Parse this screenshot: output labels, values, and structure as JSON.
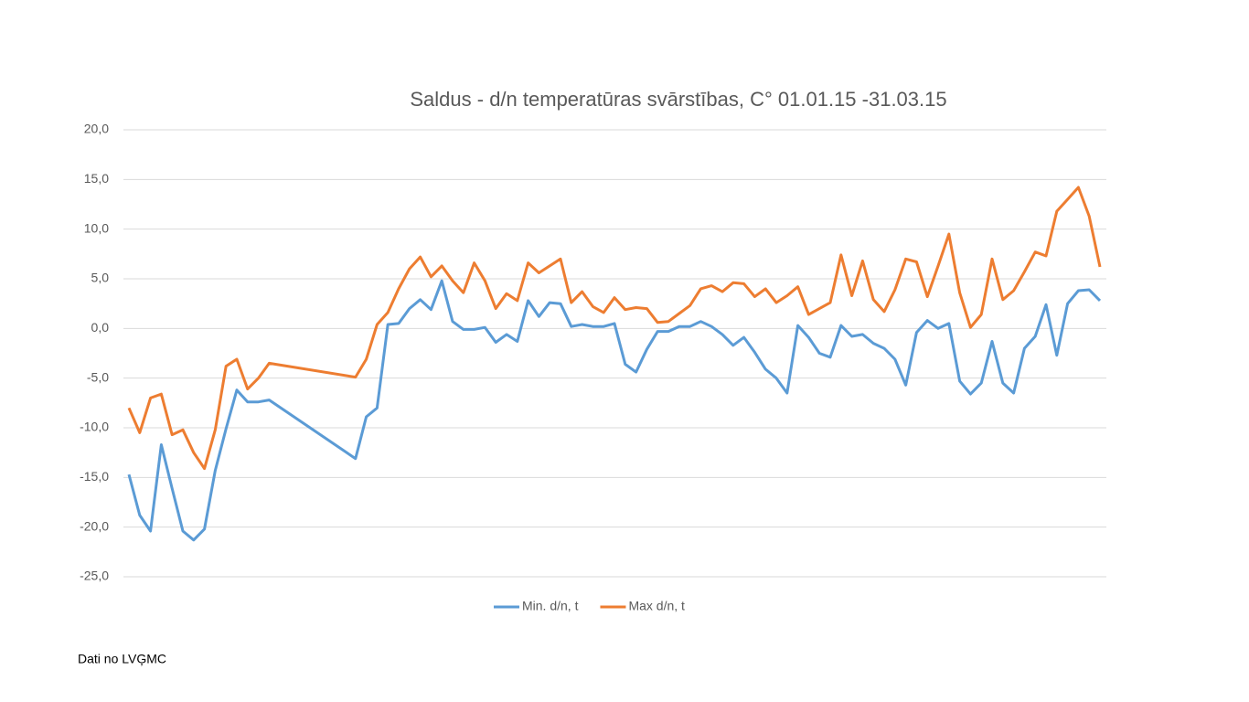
{
  "chart_data": {
    "type": "line",
    "title": "Saldus - d/n temperatūras  svārstības, C° 01.01.15 -31.03.15",
    "x": [
      1,
      2,
      3,
      4,
      5,
      6,
      7,
      8,
      9,
      10,
      11,
      12,
      13,
      14,
      22,
      23,
      24,
      25,
      26,
      27,
      28,
      29,
      30,
      31,
      32,
      33,
      34,
      35,
      36,
      37,
      38,
      39,
      40,
      41,
      42,
      43,
      44,
      45,
      46,
      47,
      48,
      49,
      50,
      51,
      52,
      53,
      54,
      55,
      56,
      57,
      58,
      59,
      60,
      61,
      62,
      63,
      64,
      65,
      66,
      67,
      68,
      69,
      70,
      71,
      72,
      73,
      74,
      75,
      76,
      77,
      78,
      79,
      80,
      81,
      82,
      83,
      84,
      85,
      86,
      87,
      88,
      89,
      90,
      91
    ],
    "xlim": [
      1,
      91
    ],
    "series": [
      {
        "name": "Min. d/n, t",
        "color": "#5b9bd5",
        "values": [
          -14.7,
          -18.8,
          -20.4,
          -11.7,
          -16.1,
          -20.4,
          -21.3,
          -20.2,
          -14.3,
          -10.1,
          -6.2,
          -7.4,
          -7.4,
          -7.2,
          -13.1,
          -8.9,
          -8.0,
          0.4,
          0.5,
          2.0,
          2.9,
          1.9,
          4.8,
          0.7,
          -0.1,
          -0.1,
          0.1,
          -1.4,
          -0.6,
          -1.3,
          2.8,
          1.2,
          2.6,
          2.5,
          0.2,
          0.4,
          0.2,
          0.2,
          0.5,
          -3.6,
          -4.4,
          -2.1,
          -0.3,
          -0.3,
          0.2,
          0.2,
          0.7,
          0.2,
          -0.6,
          -1.7,
          -0.9,
          -2.4,
          -4.1,
          -5.0,
          -6.5,
          0.3,
          -0.9,
          -2.5,
          -2.9,
          0.3,
          -0.8,
          -0.6,
          -1.5,
          -2.0,
          -3.1,
          -5.7,
          -0.4,
          0.8,
          0.0,
          0.5,
          -5.3,
          -6.6,
          -5.5,
          -1.3,
          -5.5,
          -6.5,
          -2.0,
          -0.8,
          2.4,
          -2.7,
          2.5,
          3.8,
          3.9,
          2.8
        ]
      },
      {
        "name": "Max d/n, t",
        "color": "#ed7d31",
        "values": [
          -8.0,
          -10.5,
          -7.0,
          -6.6,
          -10.7,
          -10.2,
          -12.5,
          -14.1,
          -10.2,
          -3.8,
          -3.1,
          -6.1,
          -5.0,
          -3.5,
          -4.9,
          -3.1,
          0.4,
          1.6,
          4.0,
          6.0,
          7.2,
          5.2,
          6.3,
          4.8,
          3.6,
          6.6,
          4.8,
          2.0,
          3.5,
          2.8,
          6.6,
          5.6,
          6.3,
          7.0,
          2.6,
          3.7,
          2.2,
          1.6,
          3.1,
          1.9,
          2.1,
          2.0,
          0.6,
          0.7,
          1.5,
          2.3,
          4.0,
          4.3,
          3.7,
          4.6,
          4.5,
          3.2,
          4.0,
          2.6,
          3.3,
          4.2,
          1.4,
          2.0,
          2.6,
          7.4,
          3.3,
          6.8,
          2.9,
          1.7,
          3.9,
          7.0,
          6.7,
          3.2,
          6.3,
          9.5,
          3.6,
          0.1,
          1.4,
          7.0,
          2.9,
          3.8,
          5.7,
          7.7,
          7.3,
          11.8,
          13.0,
          14.2,
          11.3,
          6.2
        ]
      }
    ],
    "ylim": [
      -25,
      20
    ],
    "yticks": [
      {
        "value": -25,
        "label": "-25,0"
      },
      {
        "value": -20,
        "label": "-20,0"
      },
      {
        "value": -15,
        "label": "-15,0"
      },
      {
        "value": -10,
        "label": "-10,0"
      },
      {
        "value": -5,
        "label": "-5,0"
      },
      {
        "value": 0,
        "label": "0,0"
      },
      {
        "value": 5,
        "label": "5,0"
      },
      {
        "value": 10,
        "label": "10,0"
      },
      {
        "value": 15,
        "label": "15,0"
      },
      {
        "value": 20,
        "label": "20,0"
      }
    ],
    "grid": true,
    "legend": "bottom"
  },
  "footer": "Dati no LVĢMC"
}
